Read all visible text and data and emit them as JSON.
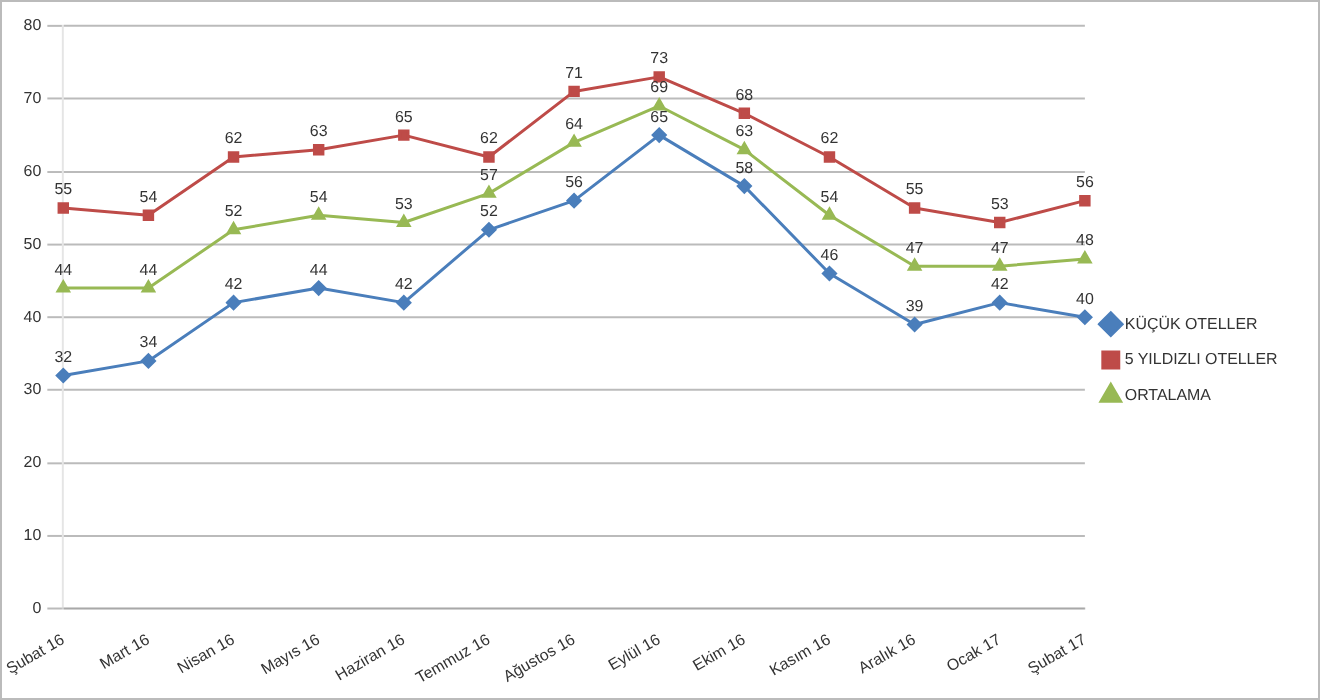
{
  "chart_data": {
    "type": "line",
    "categories": [
      "Şubat 16",
      "Mart 16",
      "Nisan 16",
      "Mayıs 16",
      "Haziran 16",
      "Temmuz 16",
      "Ağustos 16",
      "Eylül 16",
      "Ekim 16",
      "Kasım 16",
      "Aralık 16",
      "Ocak 17",
      "Şubat 17"
    ],
    "series": [
      {
        "name": "KÜÇÜK OTELLER",
        "color": "#4a7ebb",
        "marker": "diamond",
        "values": [
          32,
          34,
          42,
          44,
          42,
          52,
          56,
          65,
          58,
          46,
          39,
          42,
          40
        ]
      },
      {
        "name": "5 YILDIZLI OTELLER",
        "color": "#be4b48",
        "marker": "square",
        "values": [
          55,
          54,
          62,
          63,
          65,
          62,
          71,
          73,
          68,
          62,
          55,
          53,
          56
        ]
      },
      {
        "name": "ORTALAMA",
        "color": "#98b954",
        "marker": "triangle",
        "values": [
          44,
          44,
          52,
          54,
          53,
          57,
          64,
          69,
          63,
          54,
          47,
          47,
          48
        ]
      }
    ],
    "ylim": [
      0,
      80
    ],
    "yticks": [
      0,
      10,
      20,
      30,
      40,
      50,
      60,
      70,
      80
    ],
    "grid": "y",
    "legend": "right",
    "data_labels": true,
    "line_style": "solid"
  }
}
